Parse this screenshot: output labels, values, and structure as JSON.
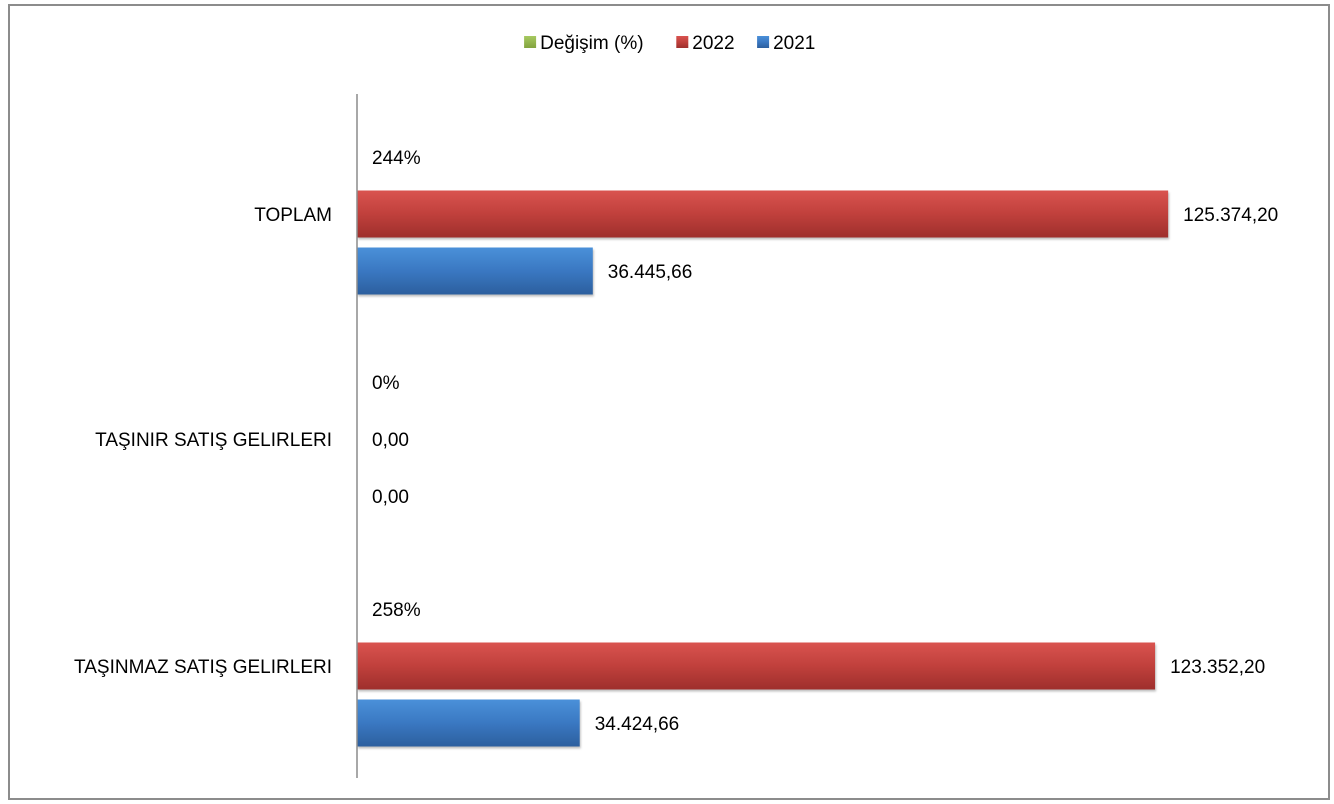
{
  "chart_data": {
    "type": "bar",
    "orientation": "horizontal",
    "categories": [
      "TOPLAM",
      "TAŞINIR SATIŞ GELIRLERI",
      "TAŞINMAZ SATIŞ GELIRLERI"
    ],
    "series": [
      {
        "name": "Değişim (%)",
        "color": "#9bbb59",
        "values": [
          244,
          0,
          258
        ],
        "labels": [
          "244%",
          "0%",
          "258%"
        ]
      },
      {
        "name": "2022",
        "color": "#c0504d",
        "values": [
          125374.2,
          0.0,
          123352.2
        ],
        "labels": [
          "125.374,20",
          "0,00",
          "123.352,20"
        ]
      },
      {
        "name": "2021",
        "color": "#4f81bd",
        "values": [
          36445.66,
          0.0,
          34424.66
        ],
        "labels": [
          "36.445,66",
          "0,00",
          "34.424,66"
        ]
      }
    ],
    "legend": {
      "position": "top",
      "order": [
        "Değişim (%)",
        "2022",
        "2021"
      ]
    },
    "xlim": [
      0,
      147300
    ],
    "grid": false,
    "title": "",
    "xlabel": "",
    "ylabel": ""
  }
}
